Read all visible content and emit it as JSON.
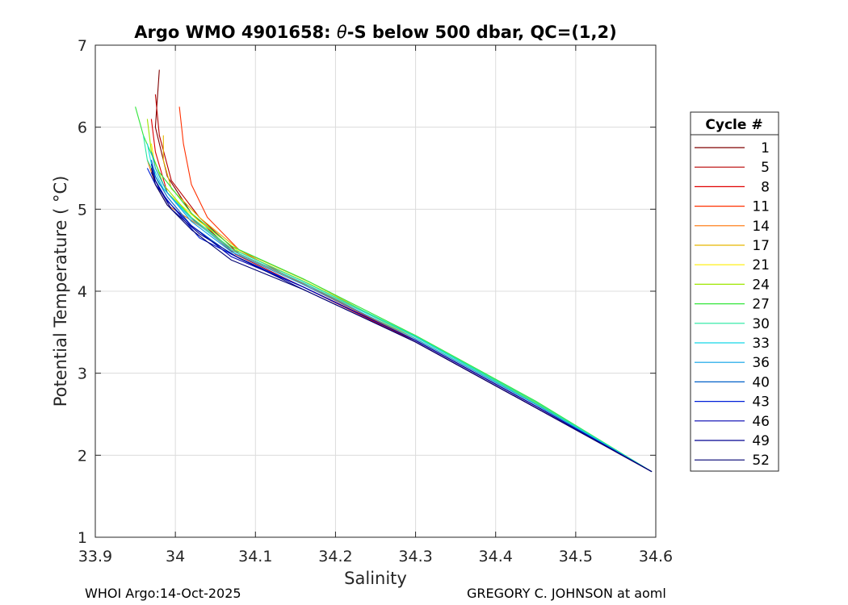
{
  "chart_data": {
    "type": "line",
    "title_prefix": "Argo WMO 4901658: ",
    "title_symbol": "θ",
    "title_suffix": "-S below 500 dbar,  QC=(1,2)",
    "xlabel": "Salinity",
    "ylabel": "Potential Temperature ( °C)",
    "xlim": [
      33.9,
      34.6
    ],
    "ylim": [
      1,
      7
    ],
    "xticks": [
      "33.9",
      "34",
      "34.1",
      "34.2",
      "34.3",
      "34.4",
      "34.5",
      "34.6"
    ],
    "yticks": [
      "1",
      "2",
      "3",
      "4",
      "5",
      "6",
      "7"
    ],
    "grid": true,
    "legend_title": "Cycle #",
    "legend_position": "right",
    "series": [
      {
        "name": "1",
        "color": "#7f0000",
        "x": [
          33.98,
          33.975,
          33.99,
          34.02,
          34.07,
          34.16,
          34.3,
          34.45,
          34.595
        ],
        "y": [
          6.7,
          6.0,
          5.4,
          4.95,
          4.5,
          4.1,
          3.4,
          2.6,
          1.8
        ]
      },
      {
        "name": "5",
        "color": "#b80000",
        "x": [
          33.975,
          33.98,
          33.995,
          34.03,
          34.08,
          34.17,
          34.3,
          34.45,
          34.595
        ],
        "y": [
          6.4,
          5.9,
          5.35,
          4.9,
          4.45,
          4.05,
          3.38,
          2.58,
          1.8
        ]
      },
      {
        "name": "8",
        "color": "#e00000",
        "x": [
          33.97,
          33.975,
          33.99,
          34.025,
          34.075,
          34.16,
          34.3,
          34.45,
          34.595
        ],
        "y": [
          6.1,
          5.7,
          5.2,
          4.85,
          4.45,
          4.05,
          3.38,
          2.58,
          1.8
        ]
      },
      {
        "name": "11",
        "color": "#ff3000",
        "x": [
          34.005,
          34.01,
          34.02,
          34.04,
          34.08,
          34.16,
          34.3,
          34.45,
          34.595
        ],
        "y": [
          6.25,
          5.8,
          5.3,
          4.9,
          4.5,
          4.08,
          3.4,
          2.6,
          1.8
        ]
      },
      {
        "name": "14",
        "color": "#ff7000",
        "x": [
          33.965,
          33.975,
          33.99,
          34.03,
          34.08,
          34.17,
          34.3,
          34.45,
          34.595
        ],
        "y": [
          5.6,
          5.3,
          5.05,
          4.8,
          4.45,
          4.05,
          3.4,
          2.6,
          1.8
        ]
      },
      {
        "name": "17",
        "color": "#e6b800",
        "x": [
          33.985,
          33.985,
          33.995,
          34.03,
          34.08,
          34.17,
          34.3,
          34.45,
          34.595
        ],
        "y": [
          5.9,
          5.6,
          5.25,
          4.9,
          4.5,
          4.1,
          3.42,
          2.62,
          1.8
        ]
      },
      {
        "name": "21",
        "color": "#ffee00",
        "x": [
          33.97,
          33.975,
          33.99,
          34.03,
          34.08,
          34.17,
          34.3,
          34.45,
          34.595
        ],
        "y": [
          5.8,
          5.5,
          5.2,
          4.85,
          4.48,
          4.08,
          3.42,
          2.62,
          1.8
        ]
      },
      {
        "name": "24",
        "color": "#9ee600",
        "x": [
          33.965,
          33.97,
          33.985,
          34.02,
          34.07,
          34.16,
          34.3,
          34.45,
          34.595
        ],
        "y": [
          6.1,
          5.7,
          5.3,
          4.9,
          4.52,
          4.12,
          3.44,
          2.64,
          1.8
        ]
      },
      {
        "name": "27",
        "color": "#33e63c",
        "x": [
          33.95,
          33.96,
          33.98,
          34.02,
          34.07,
          34.16,
          34.3,
          34.45,
          34.595
        ],
        "y": [
          6.25,
          5.9,
          5.45,
          4.95,
          4.55,
          4.15,
          3.46,
          2.66,
          1.8
        ]
      },
      {
        "name": "30",
        "color": "#22e8a0",
        "x": [
          33.96,
          33.965,
          33.98,
          34.02,
          34.07,
          34.16,
          34.3,
          34.45,
          34.595
        ],
        "y": [
          5.9,
          5.6,
          5.3,
          4.9,
          4.52,
          4.12,
          3.45,
          2.65,
          1.8
        ]
      },
      {
        "name": "33",
        "color": "#15d8e6",
        "x": [
          33.965,
          33.97,
          33.985,
          34.02,
          34.07,
          34.16,
          34.3,
          34.45,
          34.595
        ],
        "y": [
          5.8,
          5.55,
          5.25,
          4.88,
          4.5,
          4.1,
          3.44,
          2.63,
          1.8
        ]
      },
      {
        "name": "36",
        "color": "#0aa0e6",
        "x": [
          33.97,
          33.975,
          33.99,
          34.02,
          34.07,
          34.16,
          34.3,
          34.45,
          34.595
        ],
        "y": [
          5.7,
          5.5,
          5.2,
          4.85,
          4.48,
          4.08,
          3.42,
          2.62,
          1.8
        ]
      },
      {
        "name": "40",
        "color": "#0060c8",
        "x": [
          33.97,
          33.975,
          33.99,
          34.02,
          34.07,
          34.16,
          34.3,
          34.45,
          34.595
        ],
        "y": [
          5.6,
          5.4,
          5.15,
          4.8,
          4.45,
          4.05,
          3.4,
          2.6,
          1.8
        ]
      },
      {
        "name": "43",
        "color": "#0020d8",
        "x": [
          33.965,
          33.975,
          33.995,
          34.03,
          34.08,
          34.16,
          34.3,
          34.45,
          34.595
        ],
        "y": [
          5.5,
          5.3,
          5.05,
          4.65,
          4.4,
          4.05,
          3.4,
          2.6,
          1.8
        ]
      },
      {
        "name": "46",
        "color": "#0000b0",
        "x": [
          33.97,
          33.975,
          33.99,
          34.02,
          34.07,
          34.16,
          34.3,
          34.45,
          34.595
        ],
        "y": [
          5.55,
          5.35,
          5.1,
          4.8,
          4.42,
          4.05,
          3.4,
          2.6,
          1.8
        ]
      },
      {
        "name": "49",
        "color": "#000090",
        "x": [
          33.97,
          33.98,
          33.995,
          34.03,
          34.08,
          34.16,
          34.3,
          34.45,
          34.595
        ],
        "y": [
          5.45,
          5.25,
          5.0,
          4.7,
          4.4,
          4.02,
          3.38,
          2.58,
          1.8
        ]
      },
      {
        "name": "52",
        "color": "#000070",
        "x": [
          33.97,
          33.975,
          33.99,
          34.02,
          34.07,
          34.16,
          34.3,
          34.45,
          34.595
        ],
        "y": [
          5.5,
          5.3,
          5.05,
          4.75,
          4.38,
          4.02,
          3.38,
          2.58,
          1.8
        ]
      }
    ]
  },
  "footer": {
    "left": "WHOI Argo:14-Oct-2025",
    "right": "GREGORY C. JOHNSON at aoml"
  }
}
